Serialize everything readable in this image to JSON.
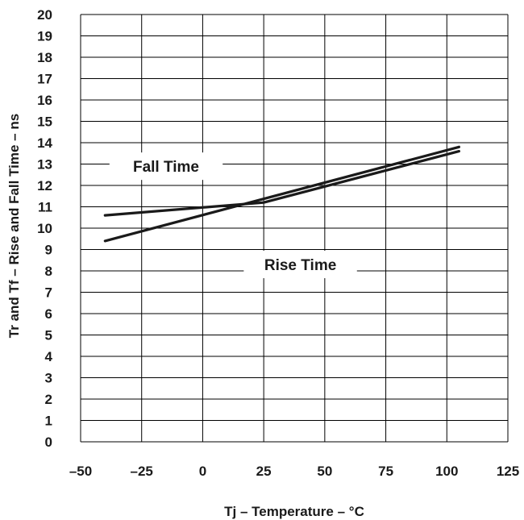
{
  "chart_data": {
    "type": "line",
    "xlabel": "Tj – Temperature – °C",
    "ylabel": "Tr and Tf – Rise and Fall Time – ns",
    "xlim": [
      -50,
      125
    ],
    "ylim": [
      0,
      20
    ],
    "x_ticks": [
      -50,
      -25,
      0,
      25,
      50,
      75,
      100,
      125
    ],
    "x_tick_labels": [
      "–50",
      "–25",
      "0",
      "25",
      "50",
      "75",
      "100",
      "125"
    ],
    "y_ticks": [
      0,
      1,
      2,
      3,
      4,
      5,
      6,
      7,
      8,
      9,
      10,
      11,
      12,
      13,
      14,
      15,
      16,
      17,
      18,
      19,
      20
    ],
    "y_tick_labels": [
      "0",
      "1",
      "2",
      "3",
      "4",
      "5",
      "6",
      "7",
      "8",
      "9",
      "10",
      "11",
      "12",
      "13",
      "14",
      "15",
      "16",
      "17",
      "18",
      "19",
      "20"
    ],
    "grid": true,
    "legend": "none",
    "line_color": "#1a1a1a",
    "series": [
      {
        "name": "Fall Time",
        "x": [
          -40,
          25,
          105
        ],
        "y": [
          10.6,
          11.2,
          13.6
        ]
      },
      {
        "name": "Rise Time",
        "x": [
          -40,
          105
        ],
        "y": [
          9.4,
          13.8
        ]
      }
    ],
    "annotations": [
      {
        "text": "Fall Time",
        "x": -15,
        "y": 12.9
      },
      {
        "text": "Rise Time",
        "x": 40,
        "y": 8.3
      }
    ]
  }
}
